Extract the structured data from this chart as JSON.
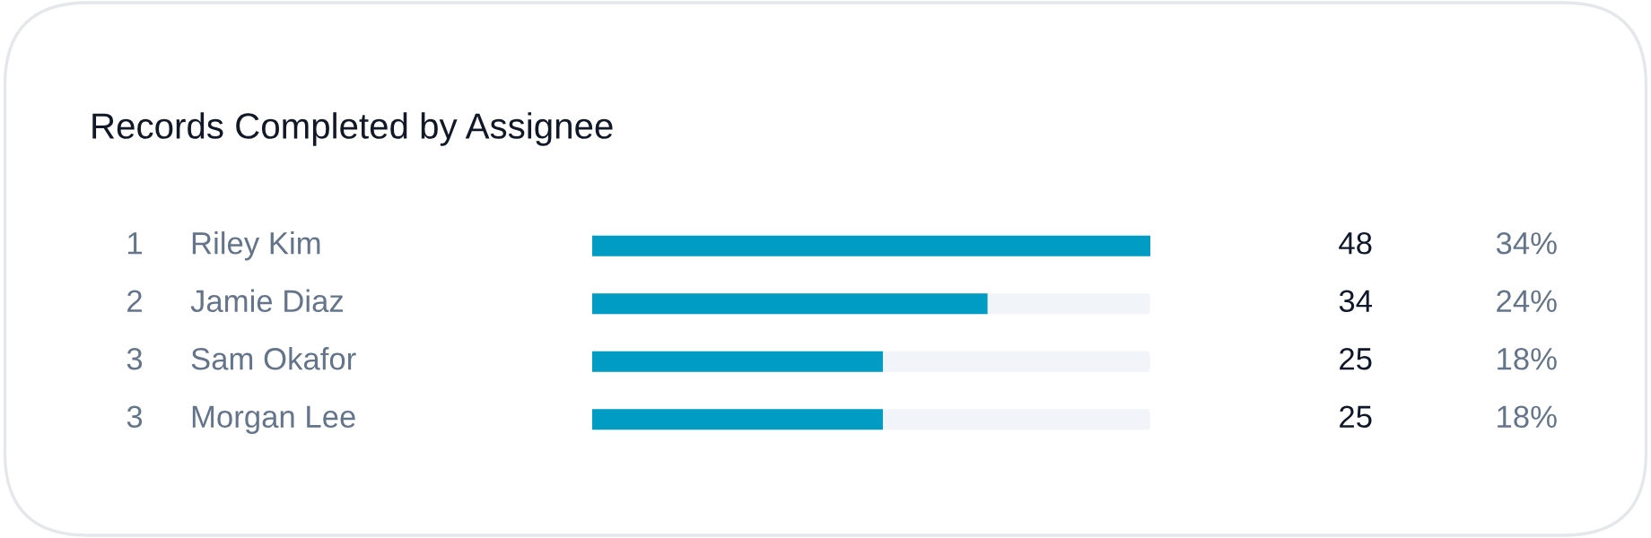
{
  "chart_data": {
    "type": "bar",
    "orientation": "horizontal",
    "title": "Records Completed by Assignee",
    "categories": [
      "Riley Kim",
      "Jamie Diaz",
      "Sam Okafor",
      "Morgan Lee"
    ],
    "values": [
      48,
      34,
      25,
      25
    ],
    "color": "#009cc4",
    "xlim": [
      0,
      48
    ],
    "tick_labels": false,
    "legend": false,
    "data_labels": true,
    "annotations": [
      "1",
      "2",
      "3",
      "3",
      "34%",
      "24%",
      "18%",
      "18%"
    ]
  }
}
